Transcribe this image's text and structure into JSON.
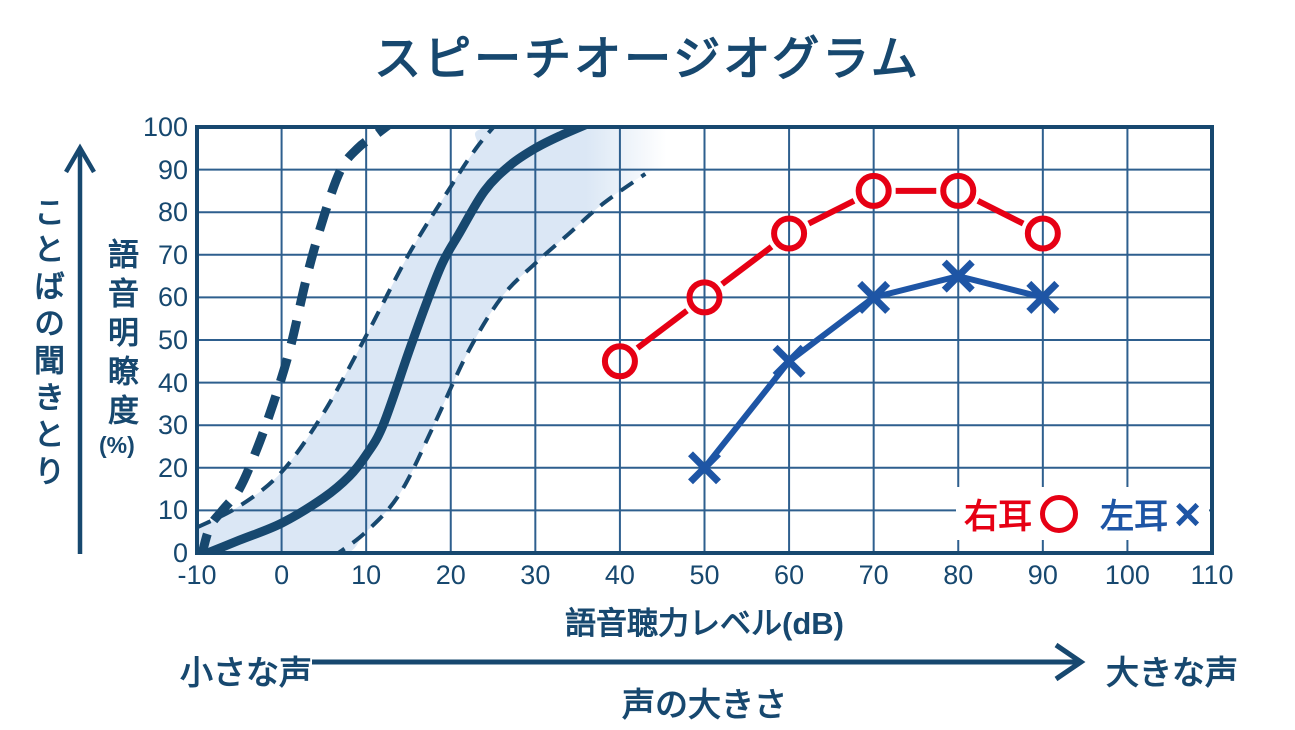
{
  "title": "スピーチオージオグラム",
  "y_axis": {
    "arrow_label": "ことばの聞きとり",
    "label": "語音明瞭度",
    "unit": "(%)"
  },
  "x_axis": {
    "label": "語音聴力レベル(dB)"
  },
  "loudness_scale": {
    "quiet": "小さな声",
    "axis_label": "声の大きさ",
    "loud": "大きな声"
  },
  "legend": {
    "right_ear_label": "右耳",
    "right_ear_symbol": "○",
    "left_ear_label": "左耳",
    "left_ear_symbol": "×"
  },
  "colors": {
    "navy": "#17486f",
    "grid": "#2e5f8e",
    "band": "#dbe7f5",
    "red": "#e60014",
    "blue": "#1e55a5"
  },
  "chart_data": {
    "type": "line",
    "title": "スピーチオージオグラム",
    "xlabel": "語音聴力レベル(dB)",
    "ylabel": "語音明瞭度(%)",
    "xlim": [
      -10,
      110
    ],
    "ylim": [
      0,
      100
    ],
    "x_ticks": [
      -10,
      0,
      10,
      20,
      30,
      40,
      50,
      60,
      70,
      80,
      90,
      100,
      110
    ],
    "y_ticks": [
      0,
      10,
      20,
      30,
      40,
      50,
      60,
      70,
      80,
      90,
      100
    ],
    "grid": true,
    "legend_position": "bottom-right",
    "series": [
      {
        "name": "右耳",
        "marker": "circle",
        "color": "#e60014",
        "points": [
          [
            40,
            45
          ],
          [
            50,
            60
          ],
          [
            60,
            75
          ],
          [
            70,
            85
          ],
          [
            80,
            85
          ],
          [
            90,
            75
          ]
        ]
      },
      {
        "name": "左耳",
        "marker": "x",
        "color": "#1e55a5",
        "points": [
          [
            50,
            20
          ],
          [
            60,
            45
          ],
          [
            70,
            60
          ],
          [
            80,
            65
          ],
          [
            90,
            60
          ]
        ]
      }
    ],
    "reference_curves": [
      {
        "name": "steep-dashed-reference",
        "style": "bold-dashed",
        "color": "#17486f",
        "points": [
          [
            -9.5,
            -1
          ],
          [
            -8.5,
            6
          ],
          [
            -7,
            10
          ],
          [
            -5,
            15
          ],
          [
            -3,
            24
          ],
          [
            -1,
            35
          ],
          [
            1,
            48
          ],
          [
            3,
            65
          ],
          [
            5,
            79
          ],
          [
            7,
            90
          ],
          [
            9,
            95
          ],
          [
            11,
            98
          ],
          [
            13,
            101
          ]
        ]
      },
      {
        "name": "normal-median",
        "style": "bold-solid",
        "color": "#17486f",
        "points": [
          [
            -10,
            -1
          ],
          [
            -5,
            3
          ],
          [
            0,
            7
          ],
          [
            5,
            13
          ],
          [
            8,
            18
          ],
          [
            10,
            23
          ],
          [
            12,
            30
          ],
          [
            15,
            47
          ],
          [
            17,
            58
          ],
          [
            19,
            68
          ],
          [
            21,
            75
          ],
          [
            24,
            85
          ],
          [
            27,
            91
          ],
          [
            30,
            95
          ],
          [
            33,
            98
          ],
          [
            36.5,
            101
          ]
        ]
      },
      {
        "name": "normal-range-upper",
        "style": "thin-dashed",
        "color": "#17486f",
        "points": [
          [
            -10,
            6
          ],
          [
            -5,
            11
          ],
          [
            0,
            19
          ],
          [
            5,
            33
          ],
          [
            10,
            51
          ],
          [
            15,
            70
          ],
          [
            20,
            86
          ],
          [
            23,
            95
          ],
          [
            25.5,
            101
          ]
        ]
      },
      {
        "name": "normal-range-lower",
        "style": "thin-dashed",
        "color": "#17486f",
        "points": [
          [
            6,
            -1
          ],
          [
            10,
            5
          ],
          [
            14,
            14
          ],
          [
            18,
            30
          ],
          [
            22,
            47
          ],
          [
            26,
            60
          ],
          [
            30,
            68
          ],
          [
            34,
            75
          ],
          [
            38,
            82
          ],
          [
            43,
            89
          ]
        ]
      }
    ],
    "normal_range_band": {
      "fill": "#dbe7f5",
      "fade_x_start": 36,
      "fade_x_end": 45.5,
      "upper": [
        [
          -10,
          6
        ],
        [
          -5,
          11
        ],
        [
          0,
          19
        ],
        [
          5,
          33
        ],
        [
          10,
          51
        ],
        [
          15,
          70
        ],
        [
          20,
          86
        ],
        [
          23,
          95
        ],
        [
          25,
          100
        ],
        [
          46,
          100
        ]
      ],
      "lower": [
        [
          -10,
          -1
        ],
        [
          6,
          -1
        ],
        [
          10,
          5
        ],
        [
          14,
          14
        ],
        [
          18,
          30
        ],
        [
          22,
          47
        ],
        [
          26,
          60
        ],
        [
          30,
          68
        ],
        [
          34,
          75
        ],
        [
          38,
          82
        ],
        [
          43,
          89
        ],
        [
          46,
          91
        ]
      ]
    }
  }
}
